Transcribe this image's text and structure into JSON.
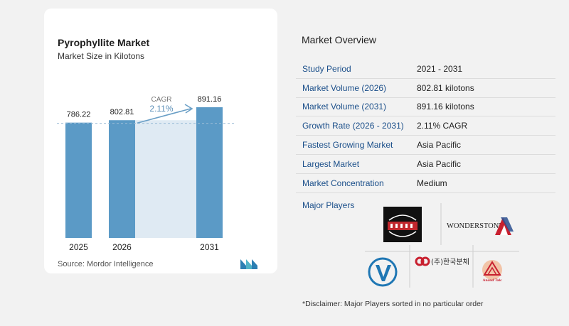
{
  "chart": {
    "title": "Pyrophyllite Market",
    "subtitle": "Market Size in Kilotons",
    "source": "Source:  Mordor Intelligence",
    "cagr_label": "CAGR",
    "cagr_value": "2.11%",
    "colors": {
      "bar": "#5b9ac6",
      "band": "#dfeaf3",
      "arrow": "#6a9fc6",
      "cagr_text": "#5b8fb8"
    }
  },
  "chart_data": {
    "type": "bar",
    "categories": [
      "2025",
      "2026",
      "2031"
    ],
    "values": [
      786.22,
      802.81,
      891.16
    ],
    "value_labels": [
      "786.22",
      "802.81",
      "891.16"
    ],
    "title": "Pyrophyllite Market",
    "subtitle": "Market Size in Kilotons"
  },
  "overview": {
    "title": "Market Overview",
    "rows": [
      {
        "label": "Study Period",
        "value": "2021 - 2031"
      },
      {
        "label": "Market Volume (2026)",
        "value": "802.81 kilotons"
      },
      {
        "label": "Market Volume (2031)",
        "value": "891.16 kilotons"
      },
      {
        "label": "Growth Rate (2026 - 2031)",
        "value": "2.11% CAGR"
      },
      {
        "label": "Fastest Growing Market",
        "value": "Asia Pacific"
      },
      {
        "label": "Largest Market",
        "value": "Asia Pacific"
      },
      {
        "label": "Market Concentration",
        "value": "Medium"
      }
    ],
    "players_title": "Major Players",
    "players": {
      "wonderstone": "WONDERSTONE",
      "korean": "(주)한국분체",
      "anand": "Anand Talc"
    },
    "disclaimer": "*Disclaimer: Major Players sorted in no particular order"
  }
}
